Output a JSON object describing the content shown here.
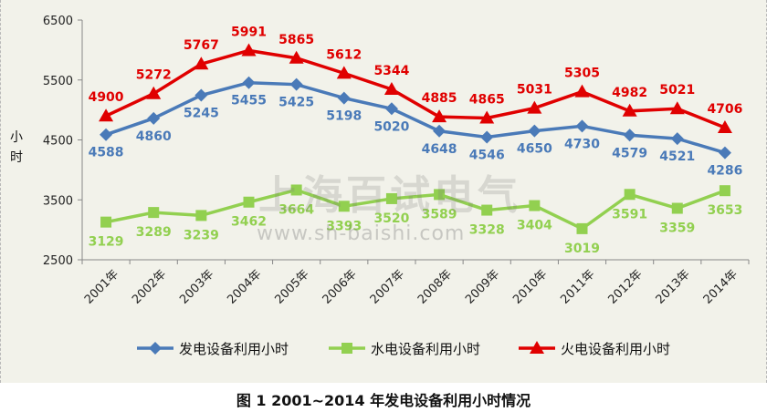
{
  "chart_data": {
    "type": "line",
    "title": "图 1  2001~2014 年发电设备利用小时情况",
    "ylabel": "小时",
    "xlabel": "",
    "ylim": [
      2500,
      6500
    ],
    "yticks": [
      2500,
      3500,
      4500,
      5500,
      6500
    ],
    "categories": [
      "2001年",
      "2002年",
      "2003年",
      "2004年",
      "2005年",
      "2006年",
      "2007年",
      "2008年",
      "2009年",
      "2010年",
      "2011年",
      "2012年",
      "2013年",
      "2014年"
    ],
    "series": [
      {
        "name": "发电设备利用小时",
        "color": "#4a7ab8",
        "marker": "diamond",
        "values": [
          4588,
          4860,
          5245,
          5455,
          5425,
          5198,
          5020,
          4648,
          4546,
          4650,
          4730,
          4579,
          4521,
          4286
        ]
      },
      {
        "name": "水电设备利用小时",
        "color": "#92d050",
        "marker": "square",
        "values": [
          3129,
          3289,
          3239,
          3462,
          3664,
          3393,
          3520,
          3589,
          3328,
          3404,
          3019,
          3591,
          3359,
          3653
        ]
      },
      {
        "name": "火电设备利用小时",
        "color": "#e00000",
        "marker": "triangle",
        "values": [
          4900,
          5272,
          5767,
          5991,
          5865,
          5612,
          5344,
          4885,
          4865,
          5031,
          5305,
          4982,
          5021,
          4706
        ]
      }
    ],
    "legend": "bottom",
    "grid": false
  },
  "watermark": {
    "text": "上海百试电气",
    "url": "www.sh-baishi.com"
  }
}
